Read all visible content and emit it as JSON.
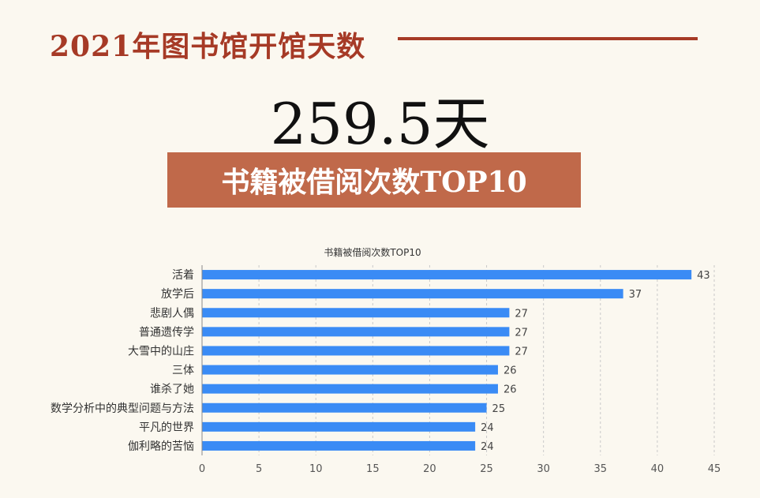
{
  "header": {
    "title": "2021年图书馆开馆天数",
    "big_stat": "259.5天",
    "section_banner": "书籍被借阅次数TOP10"
  },
  "colors": {
    "background": "#fbf8f0",
    "title_red": "#a63a26",
    "banner": "#c0694a",
    "bar": "#3a8bf5"
  },
  "chart_data": {
    "type": "bar",
    "orientation": "horizontal",
    "title": "书籍被借阅次数TOP10",
    "categories": [
      "活着",
      "放学后",
      "悲剧人偶",
      "普通遗传学",
      "大雪中的山庄",
      "三体",
      "谁杀了她",
      "数学分析中的典型问题与方法",
      "平凡的世界",
      "伽利略的苦恼"
    ],
    "values": [
      43,
      37,
      27,
      27,
      27,
      26,
      26,
      25,
      24,
      24
    ],
    "xlim": [
      0,
      45
    ],
    "xticks": [
      0,
      5,
      10,
      15,
      20,
      25,
      30,
      35,
      40,
      45
    ],
    "grid": "vertical-dashed",
    "data_labels": true
  }
}
